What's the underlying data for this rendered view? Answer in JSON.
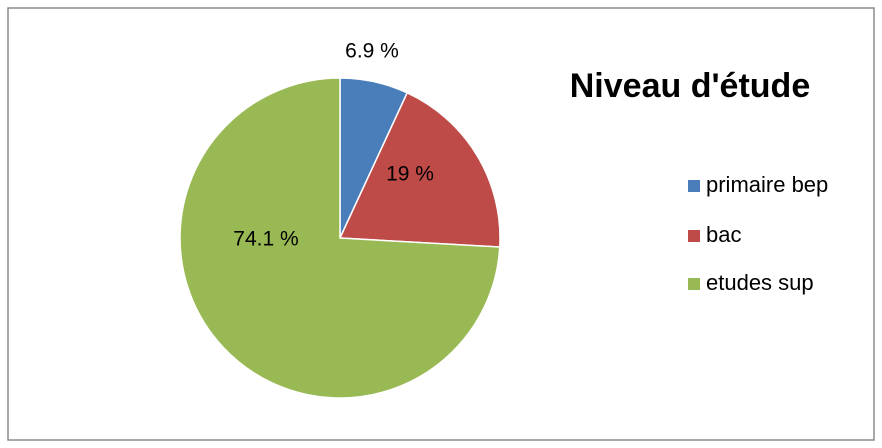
{
  "chart_data": {
    "type": "pie",
    "title": "Niveau d'étude",
    "categories": [
      "primaire bep",
      "bac",
      "etudes sup"
    ],
    "values": [
      6.9,
      19,
      74.1
    ],
    "value_labels": [
      "6.9 %",
      "19 %",
      "74.1 %"
    ],
    "colors": [
      "#4a7ebb",
      "#be4b48",
      "#98b954"
    ],
    "legend": "right"
  }
}
